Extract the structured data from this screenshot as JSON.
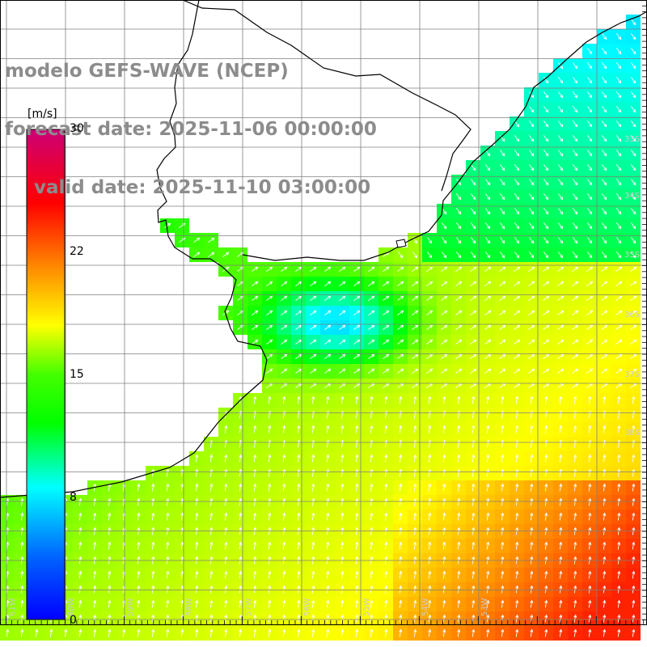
{
  "title": {
    "line1": "modelo GEFS-WAVE (NCEP)",
    "line2": "forecast date: 2025-11-06 00:00:00",
    "line3": "valid date: 2025-11-10 03:00:00"
  },
  "colorbar": {
    "unit": "[m/s]",
    "ticks": [
      "30",
      "22",
      "15",
      "8",
      "0"
    ],
    "tick_values": [
      30,
      22,
      15,
      8,
      0
    ],
    "colors": [
      "#0000ff",
      "#0088ff",
      "#00ffff",
      "#00ff00",
      "#ffff00",
      "#ff8800",
      "#ff0000",
      "#cc0066"
    ]
  },
  "map": {
    "lat_labels": [
      "33S",
      "34S",
      "35S",
      "36S",
      "37S",
      "38S"
    ],
    "lon_labels": [
      "61W",
      "60W",
      "59W",
      "58W",
      "57W",
      "56W",
      "55W",
      "54W",
      "53W"
    ],
    "land_color": "#ffffff",
    "grid_color": "#7f7f7f",
    "coast_color": "#000000"
  }
}
